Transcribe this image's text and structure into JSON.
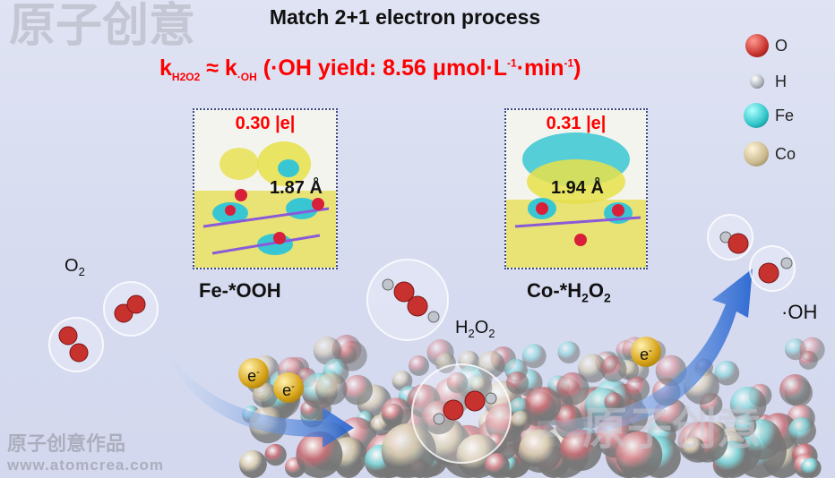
{
  "title": "Match 2+1 electron process",
  "rate_equation": {
    "k1": "k",
    "k1_sub": "H2O2",
    "approx": "≈",
    "k2": "k",
    "k2_sub": "·OH",
    "yield_text": "(·OH yield: 8.56 μmol·L",
    "exp1": "-1",
    "mid": "·min",
    "exp2": "-1",
    "close": ")"
  },
  "panels": [
    {
      "charge": "0.30 |e|",
      "distance": "1.87 Å",
      "label": "Fe-*OOH"
    },
    {
      "charge": "0.31 |e|",
      "distance": "1.94 Å",
      "label_main": "Co-*H",
      "label_sub1": "2",
      "label_mid": "O",
      "label_sub2": "2"
    }
  ],
  "legend": [
    {
      "symbol": "O",
      "color": "#c8322e"
    },
    {
      "symbol": "H",
      "color": "#b8bcc4"
    },
    {
      "symbol": "Fe",
      "color": "#2ec4c8"
    },
    {
      "symbol": "Co",
      "color": "#c9b88e"
    }
  ],
  "species": {
    "o2": {
      "main": "O",
      "sub": "2"
    },
    "h2o2": {
      "a": "H",
      "s1": "2",
      "b": "O",
      "s2": "2"
    },
    "oh": "·OH"
  },
  "electron": {
    "main": "e",
    "sup": "-"
  },
  "watermark": {
    "top": "原子创意",
    "bottom_cn": "原子创意作品",
    "bottom_url": "www.atomcrea.com",
    "mid": "原子创意"
  },
  "colors": {
    "accent_red": "#ff0000",
    "arrow_blue": "#2a6fd6"
  }
}
